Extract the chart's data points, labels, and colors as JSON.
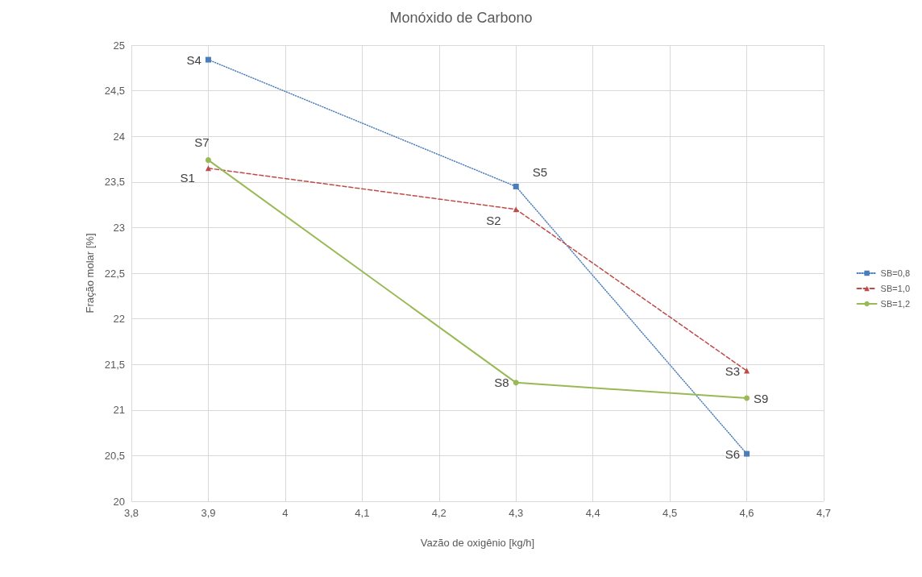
{
  "chart_data": {
    "type": "line",
    "title": "Monóxido de Carbono",
    "xlabel": "Vazão de oxigênio [kg/h]",
    "ylabel": "Fração molar [%]",
    "x": [
      3.9,
      4.3,
      4.6
    ],
    "series": [
      {
        "name": "SB=0,8",
        "color": "#4a7ebb",
        "marker": "square",
        "line_style": "dotted",
        "values": [
          24.84,
          23.45,
          20.52
        ],
        "value_labels": [
          "S4",
          "S5",
          "S6"
        ]
      },
      {
        "name": "SB=1,0",
        "color": "#be4b48",
        "marker": "triangle",
        "line_style": "dashed",
        "values": [
          23.65,
          23.2,
          21.43
        ],
        "value_labels": [
          "S1",
          "S2",
          "S3"
        ]
      },
      {
        "name": "SB=1,2",
        "color": "#98b954",
        "marker": "circle",
        "line_style": "solid",
        "values": [
          23.74,
          21.3,
          21.13
        ],
        "value_labels": [
          "S7",
          "S8",
          "S9"
        ]
      }
    ],
    "xlim": [
      3.8,
      4.7
    ],
    "xticks": [
      {
        "value": 3.8,
        "label": "3,8"
      },
      {
        "value": 3.9,
        "label": "3,9"
      },
      4,
      {
        "value": 4.1,
        "label": "4,1"
      },
      {
        "value": 4.2,
        "label": "4,2"
      },
      {
        "value": 4.3,
        "label": "4,3"
      },
      {
        "value": 4.4,
        "label": "4,4"
      },
      {
        "value": 4.5,
        "label": "4,5"
      },
      {
        "value": 4.6,
        "label": "4,6"
      },
      {
        "value": 4.7,
        "label": "4,7"
      }
    ],
    "ylim": [
      20,
      25
    ],
    "yticks": [
      20,
      {
        "value": 20.5,
        "label": "20,5"
      },
      21,
      {
        "value": 21.5,
        "label": "21,5"
      },
      22,
      {
        "value": 22.5,
        "label": "22,5"
      },
      23,
      {
        "value": 23.5,
        "label": "23,5"
      },
      24,
      {
        "value": 24.5,
        "label": "24,5"
      },
      25
    ],
    "grid": true,
    "legend": "right"
  }
}
